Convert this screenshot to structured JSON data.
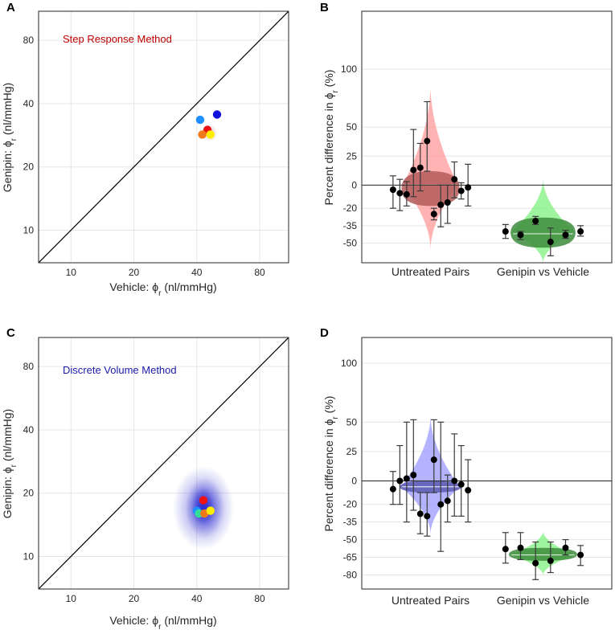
{
  "chart_data": [
    {
      "panel": "A",
      "type": "scatter",
      "title": "Step Response Method",
      "title_color": "#c00000",
      "xlabel": "Vehicle: ϕ",
      "ylabel": "Genipin: ϕ",
      "label_sub": "r",
      "label_unit": " (nl/mmHg)",
      "scale": "log",
      "xlim": [
        7,
        110
      ],
      "ylim": [
        7,
        110
      ],
      "xticks": [
        10,
        20,
        40,
        80
      ],
      "yticks": [
        10,
        20,
        40,
        80
      ],
      "identity_line": true,
      "points": [
        {
          "x": 41.5,
          "y": 33.5,
          "color": "#1f8fff"
        },
        {
          "x": 50,
          "y": 35.5,
          "color": "#1010dd"
        },
        {
          "x": 45,
          "y": 30,
          "color": "#ee1111"
        },
        {
          "x": 42.5,
          "y": 28.5,
          "color": "#f07a1a"
        },
        {
          "x": 46.5,
          "y": 28.5,
          "color": "#ffee00"
        }
      ],
      "halo": {
        "x": 46,
        "y": 29,
        "color": "#c89aa8"
      }
    },
    {
      "panel": "B",
      "type": "violin-errorbar",
      "ylabel": "Percent difference in ϕ",
      "label_sub": "r",
      "label_unit": " (%)",
      "ylim": [
        -67,
        150
      ],
      "yticks": [
        100,
        50,
        25,
        0,
        -20,
        -35,
        -50
      ],
      "groups": [
        {
          "name": "Untreated Pairs",
          "center": 0,
          "dark": "#b35a5a",
          "light": "#ff9a9a",
          "band_lo": -18,
          "band_hi": 12,
          "vmin": -55,
          "vmax": 85,
          "mode": 0,
          "width": 0.85
        },
        {
          "name": "Genipin vs Vehicle",
          "center": -42,
          "dark": "#3d8c3d",
          "light": "#7ff07f",
          "band_lo": -54,
          "band_hi": -28,
          "vmin": -67,
          "vmax": 5,
          "mode": -40,
          "width": 0.95
        }
      ],
      "points": [
        {
          "g": 0,
          "y": -4,
          "lo": -20,
          "hi": 8
        },
        {
          "g": 0,
          "y": -7,
          "lo": -22,
          "hi": 5
        },
        {
          "g": 0,
          "y": -8,
          "lo": -18,
          "hi": 3
        },
        {
          "g": 0,
          "y": 13,
          "lo": -10,
          "hi": 48
        },
        {
          "g": 0,
          "y": 15,
          "lo": -5,
          "hi": 36
        },
        {
          "g": 0,
          "y": 38,
          "lo": 12,
          "hi": 72
        },
        {
          "g": 0,
          "y": -25,
          "lo": -30,
          "hi": -20
        },
        {
          "g": 0,
          "y": -17,
          "lo": -36,
          "hi": 0
        },
        {
          "g": 0,
          "y": -15,
          "lo": -33,
          "hi": 0
        },
        {
          "g": 0,
          "y": 5,
          "lo": -11,
          "hi": 20
        },
        {
          "g": 0,
          "y": -5,
          "lo": -12,
          "hi": 2
        },
        {
          "g": 0,
          "y": -2,
          "lo": -18,
          "hi": 18
        },
        {
          "g": 1,
          "y": -40,
          "lo": -46,
          "hi": -34
        },
        {
          "g": 1,
          "y": -43,
          "lo": -47,
          "hi": -40
        },
        {
          "g": 1,
          "y": -31,
          "lo": -34,
          "hi": -27
        },
        {
          "g": 1,
          "y": -49,
          "lo": -61,
          "hi": -37
        },
        {
          "g": 1,
          "y": -43,
          "lo": -46,
          "hi": -39
        },
        {
          "g": 1,
          "y": -40,
          "lo": -44,
          "hi": -35
        }
      ]
    },
    {
      "panel": "C",
      "type": "scatter",
      "title": "Discrete Volume Method",
      "title_color": "#1a1aa8",
      "xlabel": "Vehicle: ϕ",
      "ylabel": "Genipin: ϕ",
      "label_sub": "r",
      "label_unit": " (nl/mmHg)",
      "scale": "log",
      "xlim": [
        7,
        110
      ],
      "ylim": [
        7,
        110
      ],
      "xticks": [
        10,
        20,
        40,
        80
      ],
      "yticks": [
        10,
        20,
        40,
        80
      ],
      "identity_line": true,
      "points": [
        {
          "x": 43,
          "y": 18.5,
          "color": "#ee1111"
        },
        {
          "x": 40,
          "y": 16.5,
          "color": "#1f8fff"
        },
        {
          "x": 41,
          "y": 16,
          "color": "#33dd99"
        },
        {
          "x": 43.5,
          "y": 16,
          "color": "#f07a1a"
        },
        {
          "x": 46.5,
          "y": 16.5,
          "color": "#ffee00"
        }
      ],
      "halo": {
        "x": 43,
        "y": 17,
        "color": "#2a2ad0"
      }
    },
    {
      "panel": "D",
      "type": "violin-errorbar",
      "ylabel": "Percent difference in ϕ",
      "label_sub": "r",
      "label_unit": " (%)",
      "ylim": [
        -92,
        122
      ],
      "yticks": [
        100,
        50,
        25,
        0,
        -20,
        -35,
        -50,
        -65,
        -80
      ],
      "groups": [
        {
          "name": "Untreated Pairs",
          "center": -5,
          "dark": "#5a5ab3",
          "light": "#9a9aff",
          "band_lo": -10,
          "band_hi": 0,
          "vmin": -45,
          "vmax": 55,
          "mode": -5,
          "width": 0.9
        },
        {
          "name": "Genipin vs Vehicle",
          "center": -63,
          "dark": "#3d8c3d",
          "light": "#7ff07f",
          "band_lo": -68,
          "band_hi": -57,
          "vmin": -80,
          "vmax": -43,
          "mode": -63,
          "width": 1.0
        }
      ],
      "points": [
        {
          "g": 0,
          "y": -7,
          "lo": -20,
          "hi": 8
        },
        {
          "g": 0,
          "y": 0,
          "lo": -20,
          "hi": 30
        },
        {
          "g": 0,
          "y": 2,
          "lo": -35,
          "hi": 50
        },
        {
          "g": 0,
          "y": 5,
          "lo": -25,
          "hi": 52
        },
        {
          "g": 0,
          "y": -28,
          "lo": -45,
          "hi": -10
        },
        {
          "g": 0,
          "y": -30,
          "lo": -47,
          "hi": -10
        },
        {
          "g": 0,
          "y": 18,
          "lo": -10,
          "hi": 52
        },
        {
          "g": 0,
          "y": -20,
          "lo": -60,
          "hi": 50
        },
        {
          "g": 0,
          "y": -17,
          "lo": -35,
          "hi": 5
        },
        {
          "g": 0,
          "y": 0,
          "lo": -30,
          "hi": 40
        },
        {
          "g": 0,
          "y": -3,
          "lo": -30,
          "hi": 30
        },
        {
          "g": 0,
          "y": -8,
          "lo": -35,
          "hi": 18
        },
        {
          "g": 1,
          "y": -58,
          "lo": -70,
          "hi": -44
        },
        {
          "g": 1,
          "y": -57,
          "lo": -67,
          "hi": -44
        },
        {
          "g": 1,
          "y": -70,
          "lo": -84,
          "hi": -52
        },
        {
          "g": 1,
          "y": -68,
          "lo": -78,
          "hi": -52
        },
        {
          "g": 1,
          "y": -57,
          "lo": -63,
          "hi": -50
        },
        {
          "g": 1,
          "y": -63,
          "lo": -72,
          "hi": -55
        }
      ]
    }
  ]
}
